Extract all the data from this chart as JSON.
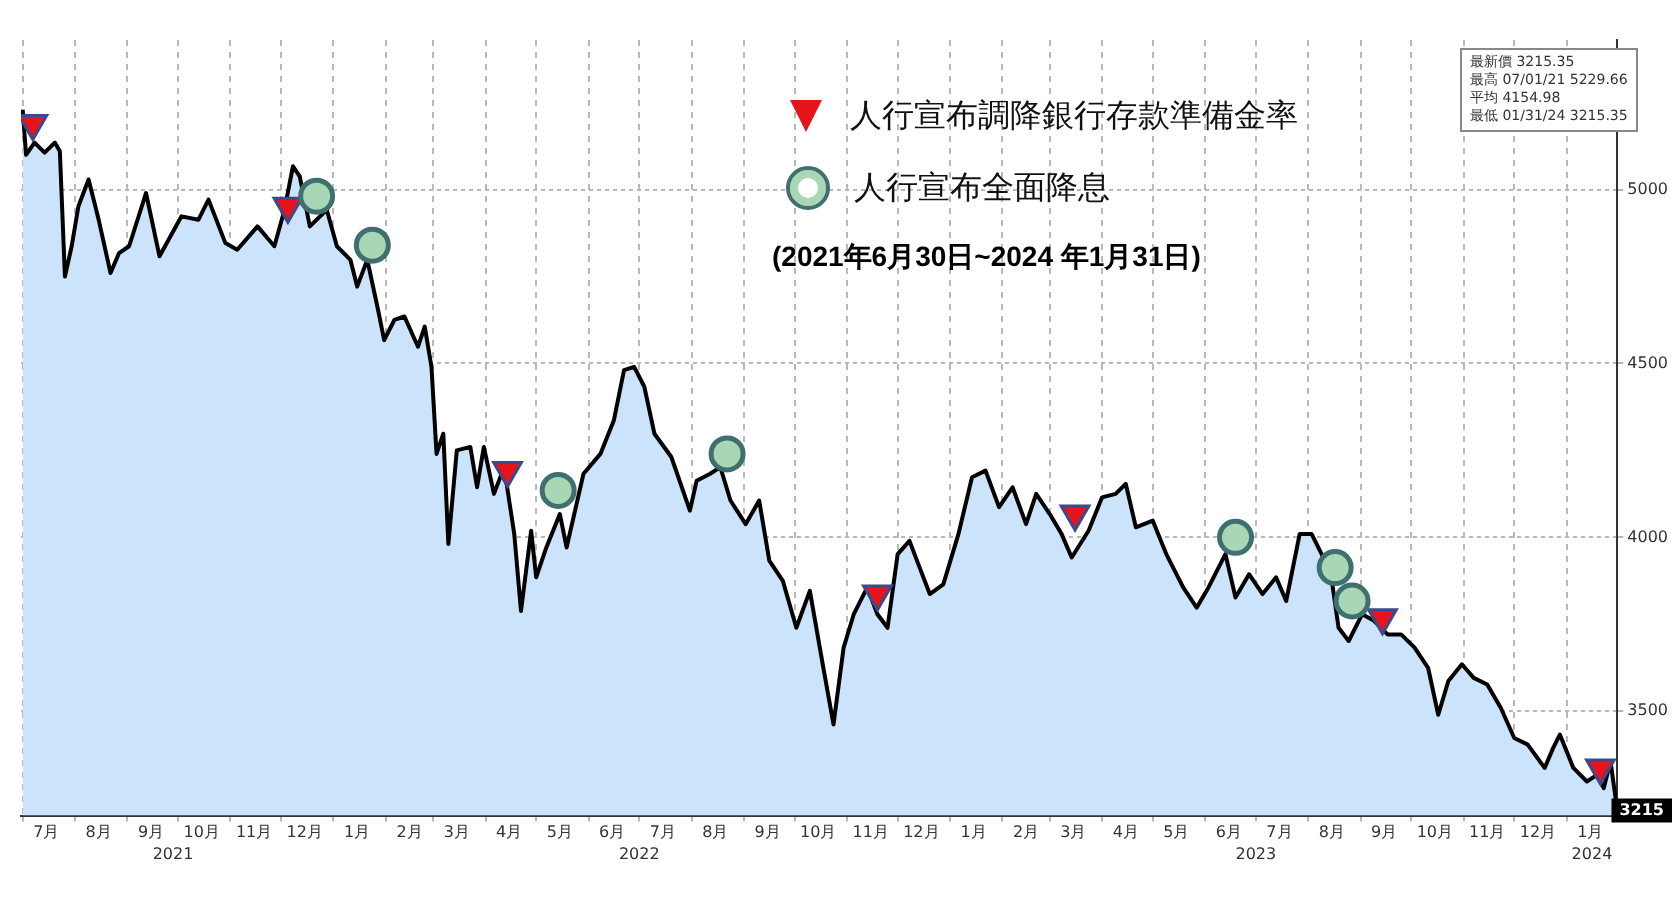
{
  "chart_data": {
    "type": "area",
    "subtitle": "(2021年6月30日~2024 年1月31日)",
    "xlim": [
      "2021-06-30",
      "2024-01-31"
    ],
    "xticks": [
      {
        "value": "2021-07-01",
        "label": null
      },
      {
        "value": "2021-07-15",
        "label": "7月"
      },
      {
        "value": "2021-08-01",
        "label": null
      },
      {
        "value": "2021-08-15",
        "label": "8月"
      },
      {
        "value": "2021-09-01",
        "label": null
      },
      {
        "value": "2021-09-15",
        "label": "9月"
      },
      {
        "value": "2021-10-01",
        "label": null
      },
      {
        "value": "2021-10-15",
        "label": "10月"
      },
      {
        "value": "2021-11-01",
        "label": null
      },
      {
        "value": "2021-11-15",
        "label": "11月"
      },
      {
        "value": "2021-12-01",
        "label": null
      },
      {
        "value": "2021-12-15",
        "label": "12月"
      },
      {
        "value": "2022-01-01",
        "label": null
      },
      {
        "value": "2022-01-15",
        "label": "1月"
      },
      {
        "value": "2022-02-01",
        "label": null
      },
      {
        "value": "2022-02-15",
        "label": "2月"
      },
      {
        "value": "2022-03-01",
        "label": null
      },
      {
        "value": "2022-03-15",
        "label": "3月"
      },
      {
        "value": "2022-04-01",
        "label": null
      },
      {
        "value": "2022-04-15",
        "label": "4月"
      },
      {
        "value": "2022-05-01",
        "label": null
      },
      {
        "value": "2022-05-15",
        "label": "5月"
      },
      {
        "value": "2022-06-01",
        "label": null
      },
      {
        "value": "2022-06-15",
        "label": "6月"
      },
      {
        "value": "2022-07-01",
        "label": null
      },
      {
        "value": "2022-07-15",
        "label": "7月"
      },
      {
        "value": "2022-08-01",
        "label": null
      },
      {
        "value": "2022-08-15",
        "label": "8月"
      },
      {
        "value": "2022-09-01",
        "label": null
      },
      {
        "value": "2022-09-15",
        "label": "9月"
      },
      {
        "value": "2022-10-01",
        "label": null
      },
      {
        "value": "2022-10-15",
        "label": "10月"
      },
      {
        "value": "2022-11-01",
        "label": null
      },
      {
        "value": "2022-11-15",
        "label": "11月"
      },
      {
        "value": "2022-12-01",
        "label": null
      },
      {
        "value": "2022-12-15",
        "label": "12月"
      },
      {
        "value": "2023-01-01",
        "label": null
      },
      {
        "value": "2023-01-15",
        "label": "1月"
      },
      {
        "value": "2023-02-01",
        "label": null
      },
      {
        "value": "2023-02-15",
        "label": "2月"
      },
      {
        "value": "2023-03-01",
        "label": null
      },
      {
        "value": "2023-03-15",
        "label": "3月"
      },
      {
        "value": "2023-04-01",
        "label": null
      },
      {
        "value": "2023-04-15",
        "label": "4月"
      },
      {
        "value": "2023-05-01",
        "label": null
      },
      {
        "value": "2023-05-15",
        "label": "5月"
      },
      {
        "value": "2023-06-01",
        "label": null
      },
      {
        "value": "2023-06-15",
        "label": "6月"
      },
      {
        "value": "2023-07-01",
        "label": null
      },
      {
        "value": "2023-07-15",
        "label": "7月"
      },
      {
        "value": "2023-08-01",
        "label": null
      },
      {
        "value": "2023-08-15",
        "label": "8月"
      },
      {
        "value": "2023-09-01",
        "label": null
      },
      {
        "value": "2023-09-15",
        "label": "9月"
      },
      {
        "value": "2023-10-01",
        "label": null
      },
      {
        "value": "2023-10-15",
        "label": "10月"
      },
      {
        "value": "2023-11-01",
        "label": null
      },
      {
        "value": "2023-11-15",
        "label": "11月"
      },
      {
        "value": "2023-12-01",
        "label": null
      },
      {
        "value": "2023-12-15",
        "label": "12月"
      },
      {
        "value": "2024-01-01",
        "label": null
      },
      {
        "value": "2024-01-15",
        "label": "1月"
      }
    ],
    "x2lim": [
      "2021-06-30",
      "2024-01-31"
    ],
    "x2ticks": [
      {
        "value": "2021-09-28",
        "label": "2021"
      },
      {
        "value": "2022-07-01",
        "label": "2022"
      },
      {
        "value": "2023-07-01",
        "label": "2023"
      },
      {
        "value": "2024-01-16",
        "label": "2024"
      }
    ],
    "ylim": [
      3200,
      5430
    ],
    "yticks": [
      3500,
      4000,
      4500,
      5000
    ],
    "grid": true,
    "legend": "top",
    "annotations": [
      "最新價 3215.35",
      "最高 07/01/21 5229.66",
      "平均 4154.98",
      "最低 01/31/24 3215.35",
      {
        "text": "3215",
        "x": "2024-01-31",
        "y": 3215
      }
    ],
    "series": [
      {
        "color": "#000000",
        "marker": "none",
        "x": [
          "2021-07-01",
          "2021-07-03",
          "2021-07-08",
          "2021-07-14",
          "2021-07-20",
          "2021-07-23",
          "2021-07-26",
          "2021-07-30",
          "2021-08-03",
          "2021-08-09",
          "2021-08-15",
          "2021-08-22",
          "2021-08-27",
          "2021-09-02",
          "2021-09-12",
          "2021-09-20",
          "2021-10-03",
          "2021-10-13",
          "2021-10-19",
          "2021-10-29",
          "2021-11-05",
          "2021-11-17",
          "2021-11-27",
          "2021-12-03",
          "2021-12-08",
          "2021-12-12",
          "2021-12-18",
          "2021-12-28",
          "2022-01-03",
          "2022-01-11",
          "2022-01-15",
          "2022-01-21",
          "2022-01-27",
          "2022-01-31",
          "2022-02-06",
          "2022-02-12",
          "2022-02-20",
          "2022-02-24",
          "2022-02-28",
          "2022-03-03",
          "2022-03-07",
          "2022-03-10",
          "2022-03-15",
          "2022-03-23",
          "2022-03-27",
          "2022-03-31",
          "2022-04-06",
          "2022-04-12",
          "2022-04-18",
          "2022-04-22",
          "2022-04-28",
          "2022-05-01",
          "2022-05-07",
          "2022-05-15",
          "2022-05-19",
          "2022-05-29",
          "2022-06-08",
          "2022-06-16",
          "2022-06-22",
          "2022-06-28",
          "2022-07-04",
          "2022-07-10",
          "2022-07-20",
          "2022-07-31",
          "2022-08-04",
          "2022-08-12",
          "2022-08-18",
          "2022-08-24",
          "2022-09-02",
          "2022-09-10",
          "2022-09-16",
          "2022-09-24",
          "2022-10-02",
          "2022-10-10",
          "2022-10-18",
          "2022-10-24",
          "2022-10-30",
          "2022-11-05",
          "2022-11-13",
          "2022-11-19",
          "2022-11-25",
          "2022-12-01",
          "2022-12-08",
          "2022-12-14",
          "2022-12-20",
          "2022-12-28",
          "2023-01-06",
          "2023-01-14",
          "2023-01-22",
          "2023-01-30",
          "2023-02-07",
          "2023-02-15",
          "2023-02-21",
          "2023-03-01",
          "2023-03-08",
          "2023-03-14",
          "2023-03-24",
          "2023-04-01",
          "2023-04-09",
          "2023-04-15",
          "2023-04-21",
          "2023-05-01",
          "2023-05-09",
          "2023-05-19",
          "2023-05-27",
          "2023-06-03",
          "2023-06-13",
          "2023-06-19",
          "2023-06-27",
          "2023-07-05",
          "2023-07-13",
          "2023-07-19",
          "2023-07-27",
          "2023-08-03",
          "2023-08-09",
          "2023-08-15",
          "2023-08-19",
          "2023-08-25",
          "2023-09-02",
          "2023-09-09",
          "2023-09-17",
          "2023-09-25",
          "2023-10-03",
          "2023-10-11",
          "2023-10-17",
          "2023-10-23",
          "2023-10-31",
          "2023-11-07",
          "2023-11-15",
          "2023-11-23",
          "2023-12-01",
          "2023-12-09",
          "2023-12-19",
          "2023-12-24",
          "2023-12-28",
          "2024-01-05",
          "2024-01-13",
          "2024-01-19",
          "2024-01-23",
          "2024-01-27",
          "2024-01-31"
        ],
        "values": [
          5230,
          5100,
          5135,
          5106,
          5135,
          5110,
          4750,
          4837,
          4952,
          5029,
          4913,
          4760,
          4817,
          4837,
          4990,
          4808,
          4923,
          4913,
          4971,
          4846,
          4827,
          4894,
          4837,
          4942,
          5067,
          5038,
          4894,
          4942,
          4837,
          4798,
          4721,
          4798,
          4663,
          4567,
          4625,
          4635,
          4548,
          4606,
          4490,
          4240,
          4298,
          3981,
          4250,
          4260,
          4144,
          4260,
          4125,
          4202,
          4010,
          3788,
          4019,
          3885,
          3971,
          4067,
          3971,
          4183,
          4240,
          4337,
          4481,
          4490,
          4433,
          4298,
          4231,
          4077,
          4163,
          4183,
          4202,
          4106,
          4038,
          4106,
          3933,
          3875,
          3740,
          3846,
          3625,
          3462,
          3683,
          3779,
          3856,
          3779,
          3740,
          3952,
          3990,
          3913,
          3837,
          3865,
          4010,
          4173,
          4192,
          4087,
          4144,
          4038,
          4125,
          4067,
          4010,
          3942,
          4019,
          4115,
          4125,
          4154,
          4029,
          4048,
          3952,
          3856,
          3798,
          3856,
          3952,
          3827,
          3894,
          3837,
          3885,
          3817,
          4010,
          4010,
          3952,
          3875,
          3740,
          3702,
          3779,
          3760,
          3721,
          3721,
          3683,
          3625,
          3490,
          3587,
          3635,
          3596,
          3577,
          3510,
          3423,
          3404,
          3337,
          3394,
          3433,
          3337,
          3298,
          3317,
          3279,
          3356,
          3215
        ]
      },
      {
        "type": "scatter",
        "name": "人行宣布調降銀行存款準備金率",
        "color": "#e8141c",
        "marker": "triangle",
        "x": [
          "2021-07-07",
          "2021-12-05",
          "2022-04-14",
          "2022-11-19",
          "2023-03-16",
          "2023-09-14",
          "2024-01-21"
        ],
        "values": [
          5190,
          4952,
          4192,
          3837,
          4067,
          3769,
          3337
        ]
      },
      {
        "type": "scatter",
        "name": "人行宣布全面降息",
        "color": "#a9d6b4",
        "marker": "circle",
        "x": [
          "2021-12-22",
          "2022-01-24",
          "2022-05-14",
          "2022-08-22",
          "2023-06-19",
          "2023-08-17",
          "2023-08-27"
        ],
        "values": [
          4981,
          4840,
          4135,
          4240,
          4000,
          3913,
          3817
        ]
      }
    ]
  }
}
